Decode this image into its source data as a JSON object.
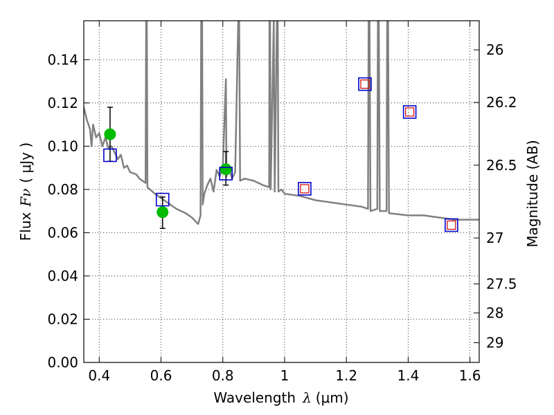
{
  "chart_data": {
    "type": "line",
    "x_axis": {
      "label": "Wavelength",
      "symbol": "λ",
      "unit": "(μm)",
      "range": [
        0.35,
        1.63
      ],
      "ticks": [
        0.4,
        0.6,
        0.8,
        1.0,
        1.2,
        1.4,
        1.6
      ],
      "tick_labels": [
        "0.4",
        "0.6",
        "0.8",
        "1",
        "1.2",
        "1.4",
        "1.6"
      ]
    },
    "y_axis": {
      "label": "Flux",
      "symbol": "Fν",
      "unit": "( μJy )",
      "range": [
        0.0,
        0.158
      ],
      "ticks": [
        0.0,
        0.02,
        0.04,
        0.06,
        0.08,
        0.1,
        0.12,
        0.14
      ],
      "tick_labels": [
        "0.00",
        "0.02",
        "0.04",
        "0.06",
        "0.08",
        "0.10",
        "0.12",
        "0.14"
      ]
    },
    "y2_axis": {
      "label": "Magnitude (AB)",
      "ticks": [
        26,
        26.2,
        26.5,
        27,
        27.5,
        28,
        29
      ],
      "tick_labels": [
        "26",
        "26.2",
        "26.5",
        "27",
        "27.5",
        "28",
        "29"
      ]
    },
    "grid": true,
    "series": [
      {
        "kind": "line",
        "color": "#808080",
        "points": [
          [
            0.35,
            0.118
          ],
          [
            0.36,
            0.112
          ],
          [
            0.37,
            0.108
          ],
          [
            0.375,
            0.1
          ],
          [
            0.38,
            0.11
          ],
          [
            0.39,
            0.104
          ],
          [
            0.4,
            0.106
          ],
          [
            0.41,
            0.1
          ],
          [
            0.42,
            0.104
          ],
          [
            0.43,
            0.099
          ],
          [
            0.44,
            0.1
          ],
          [
            0.46,
            0.094
          ],
          [
            0.47,
            0.096
          ],
          [
            0.48,
            0.09
          ],
          [
            0.49,
            0.091
          ],
          [
            0.5,
            0.088
          ],
          [
            0.52,
            0.087
          ],
          [
            0.53,
            0.085
          ],
          [
            0.55,
            0.083
          ],
          [
            0.552,
            0.158
          ],
          [
            0.554,
            0.158
          ],
          [
            0.556,
            0.081
          ],
          [
            0.58,
            0.078
          ],
          [
            0.6,
            0.076
          ],
          [
            0.62,
            0.074
          ],
          [
            0.65,
            0.071
          ],
          [
            0.68,
            0.069
          ],
          [
            0.7,
            0.067
          ],
          [
            0.72,
            0.064
          ],
          [
            0.728,
            0.068
          ],
          [
            0.73,
            0.158
          ],
          [
            0.733,
            0.158
          ],
          [
            0.735,
            0.073
          ],
          [
            0.74,
            0.078
          ],
          [
            0.75,
            0.082
          ],
          [
            0.76,
            0.085
          ],
          [
            0.77,
            0.079
          ],
          [
            0.78,
            0.089
          ],
          [
            0.79,
            0.086
          ],
          [
            0.8,
            0.09
          ],
          [
            0.81,
            0.131
          ],
          [
            0.812,
            0.086
          ],
          [
            0.82,
            0.09
          ],
          [
            0.83,
            0.085
          ],
          [
            0.84,
            0.088
          ],
          [
            0.85,
            0.158
          ],
          [
            0.853,
            0.158
          ],
          [
            0.856,
            0.084
          ],
          [
            0.87,
            0.085
          ],
          [
            0.9,
            0.084
          ],
          [
            0.93,
            0.082
          ],
          [
            0.95,
            0.081
          ],
          [
            0.951,
            0.158
          ],
          [
            0.953,
            0.158
          ],
          [
            0.955,
            0.08
          ],
          [
            0.965,
            0.158
          ],
          [
            0.968,
            0.079
          ],
          [
            0.975,
            0.158
          ],
          [
            0.978,
            0.158
          ],
          [
            0.98,
            0.079
          ],
          [
            0.99,
            0.08
          ],
          [
            1.0,
            0.078
          ],
          [
            1.05,
            0.077
          ],
          [
            1.1,
            0.075
          ],
          [
            1.15,
            0.074
          ],
          [
            1.2,
            0.073
          ],
          [
            1.25,
            0.072
          ],
          [
            1.27,
            0.071
          ],
          [
            1.272,
            0.158
          ],
          [
            1.275,
            0.158
          ],
          [
            1.278,
            0.07
          ],
          [
            1.3,
            0.071
          ],
          [
            1.302,
            0.158
          ],
          [
            1.305,
            0.158
          ],
          [
            1.308,
            0.07
          ],
          [
            1.32,
            0.07
          ],
          [
            1.33,
            0.07
          ],
          [
            1.332,
            0.158
          ],
          [
            1.335,
            0.158
          ],
          [
            1.338,
            0.069
          ],
          [
            1.4,
            0.068
          ],
          [
            1.45,
            0.068
          ],
          [
            1.5,
            0.067
          ],
          [
            1.55,
            0.066
          ],
          [
            1.6,
            0.066
          ],
          [
            1.63,
            0.066
          ]
        ]
      },
      {
        "kind": "points-with-error",
        "color": "#00bb00",
        "points": [
          {
            "x": 0.435,
            "y": 0.1055,
            "ylo": 0.093,
            "yhi": 0.118
          },
          {
            "x": 0.605,
            "y": 0.0695,
            "ylo": 0.062,
            "yhi": 0.0765
          },
          {
            "x": 0.81,
            "y": 0.0893,
            "ylo": 0.082,
            "yhi": 0.0975
          }
        ]
      },
      {
        "kind": "open-squares",
        "color": "#0000cc",
        "points": [
          [
            0.435,
            0.0958
          ],
          [
            0.605,
            0.0753
          ],
          [
            0.81,
            0.0873
          ],
          [
            1.065,
            0.0803
          ],
          [
            1.26,
            0.1287
          ],
          [
            1.405,
            0.1158
          ],
          [
            1.54,
            0.0635
          ]
        ]
      },
      {
        "kind": "inner-squares",
        "color": "#cc0000",
        "points": [
          [
            1.065,
            0.0803
          ],
          [
            1.26,
            0.1287
          ],
          [
            1.405,
            0.1158
          ],
          [
            1.54,
            0.0635
          ]
        ]
      }
    ]
  }
}
